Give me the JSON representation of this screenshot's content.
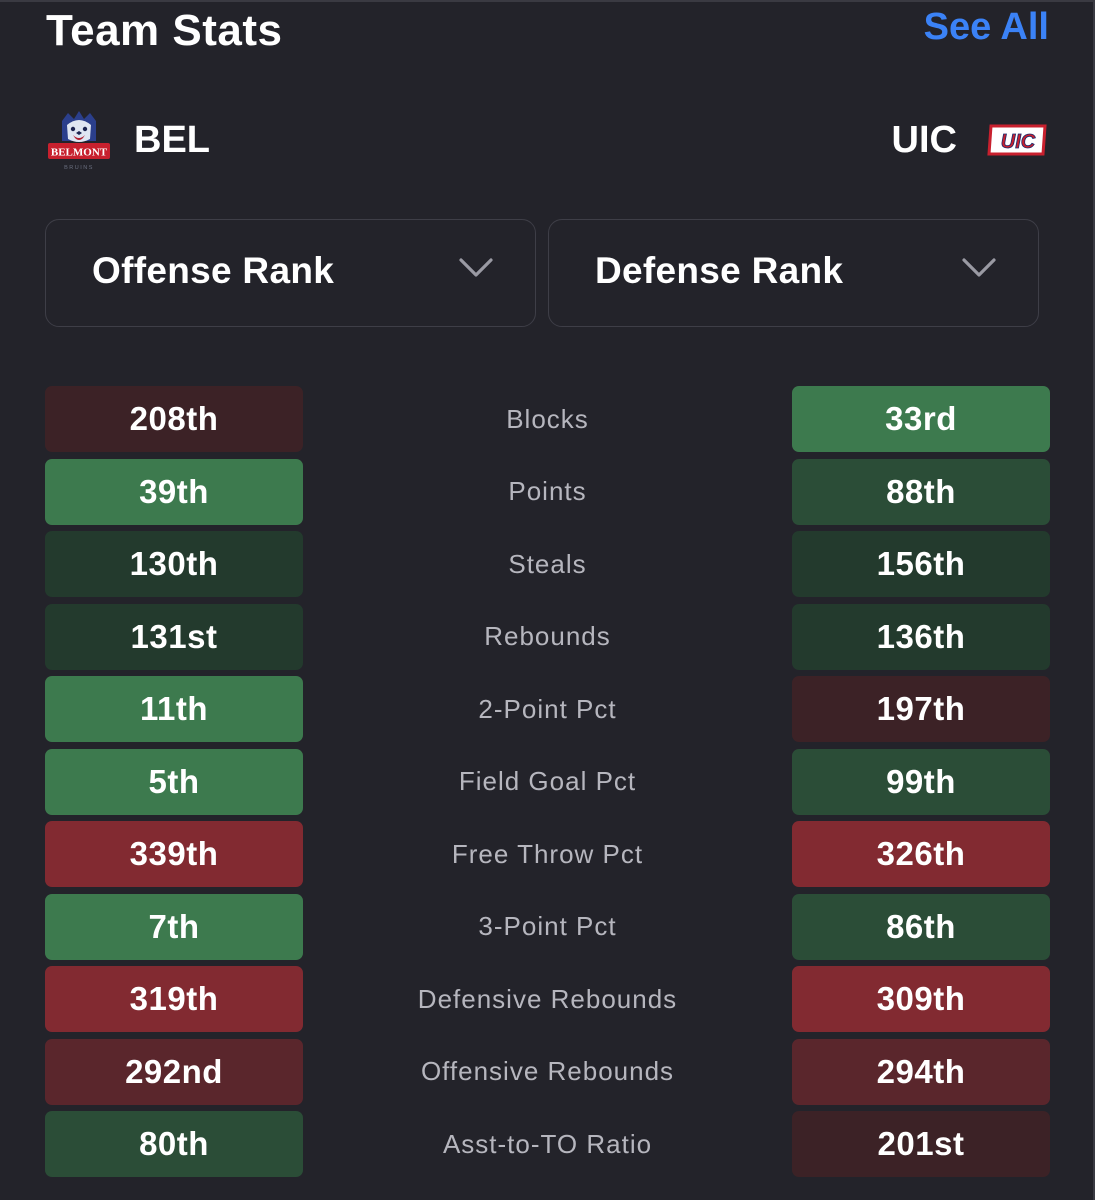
{
  "header": {
    "title": "Team Stats",
    "see_all": "See All"
  },
  "teams": {
    "left": {
      "abbr": "BEL",
      "logo_text": "BELMONT",
      "logo_sub": "BRUINS",
      "logo_icon": "bear-logo-icon"
    },
    "right": {
      "abbr": "UIC",
      "logo_text": "UIC",
      "logo_icon": "uic-logo-icon"
    }
  },
  "selectors": {
    "left": {
      "label": "Offense Rank",
      "icon": "chevron-down-icon"
    },
    "right": {
      "label": "Defense Rank",
      "icon": "chevron-down-icon"
    }
  },
  "colors": {
    "background": "#23232a",
    "accent": "#3b82f6",
    "good_strong": "#3d7a4e",
    "good_mid": "#2b4d37",
    "good_weak": "#233a2d",
    "bad_weak": "#3c2226",
    "bad_mid": "#5a262c",
    "bad_strong": "#822a31"
  },
  "stats": [
    {
      "name": "Blocks",
      "left": "208th",
      "left_tier": "bad_weak",
      "right": "33rd",
      "right_tier": "good_strong"
    },
    {
      "name": "Points",
      "left": "39th",
      "left_tier": "good_strong",
      "right": "88th",
      "right_tier": "good_mid"
    },
    {
      "name": "Steals",
      "left": "130th",
      "left_tier": "good_weak",
      "right": "156th",
      "right_tier": "good_weak"
    },
    {
      "name": "Rebounds",
      "left": "131st",
      "left_tier": "good_weak",
      "right": "136th",
      "right_tier": "good_weak"
    },
    {
      "name": "2-Point Pct",
      "left": "11th",
      "left_tier": "good_strong",
      "right": "197th",
      "right_tier": "bad_weak"
    },
    {
      "name": "Field Goal Pct",
      "left": "5th",
      "left_tier": "good_strong",
      "right": "99th",
      "right_tier": "good_mid"
    },
    {
      "name": "Free Throw Pct",
      "left": "339th",
      "left_tier": "bad_strong",
      "right": "326th",
      "right_tier": "bad_strong"
    },
    {
      "name": "3-Point Pct",
      "left": "7th",
      "left_tier": "good_strong",
      "right": "86th",
      "right_tier": "good_mid"
    },
    {
      "name": "Defensive Rebounds",
      "left": "319th",
      "left_tier": "bad_strong",
      "right": "309th",
      "right_tier": "bad_strong"
    },
    {
      "name": "Offensive Rebounds",
      "left": "292nd",
      "left_tier": "bad_mid",
      "right": "294th",
      "right_tier": "bad_mid"
    },
    {
      "name": "Asst-to-TO Ratio",
      "left": "80th",
      "left_tier": "good_mid",
      "right": "201st",
      "right_tier": "bad_weak"
    }
  ]
}
